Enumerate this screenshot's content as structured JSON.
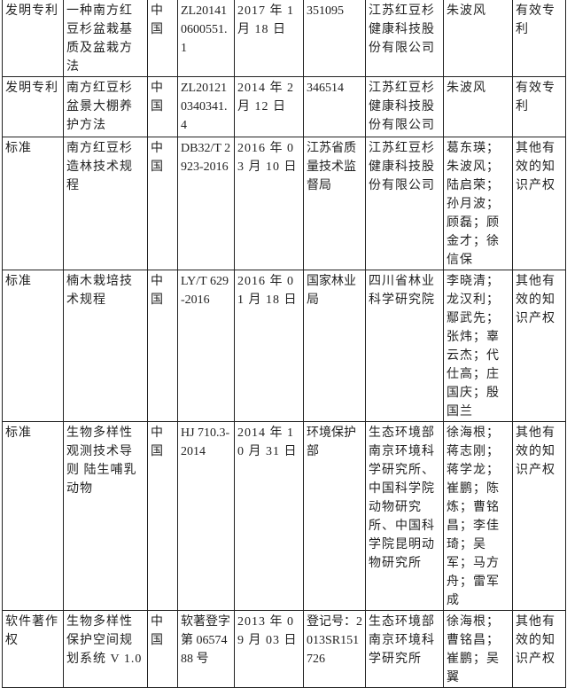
{
  "rows": [
    {
      "type": "发明专利",
      "name": "一种南方红豆杉盆栽基质及盆栽方法",
      "country": "中国",
      "number": "ZL201410600551.1",
      "date": "2017 年 1 月 18 日",
      "issuer": "351095",
      "holder": "江苏红豆杉健康科技股份有限公司",
      "inventors": "朱波风",
      "status": "有效专利"
    },
    {
      "type": "发明专利",
      "name": "南方红豆杉盆景大棚养护方法",
      "country": "中国",
      "number": "ZL201210340341.4",
      "date": "2014 年 2 月 12 日",
      "issuer": "346514",
      "holder": "江苏红豆杉健康科技股份有限公司",
      "inventors": "朱波风",
      "status": "有效专利"
    },
    {
      "type": "标准",
      "name": "南方红豆杉造林技术规程",
      "country": "中国",
      "number": "DB32/T 2923-2016",
      "date": "2016 年 03 月 10 日",
      "issuer": "江苏省质量技术监督局",
      "holder": "江苏红豆杉健康科技股份有限公司",
      "inventors": "葛东瑛；朱波风； 陆启荣；孙月波；顾磊；顾金才；徐信保",
      "status": "其他有效的知识产权"
    },
    {
      "type": "标准",
      "name": "楠木栽培技术规程",
      "country": "中国",
      "number": "LY/T 629-2016",
      "date": "2016 年 01 月 18 日",
      "issuer": "国家林业局",
      "holder": "四川省林业科学研究院",
      "inventors": "李晓清；龙汉利；鄢武先；张炜；辜云杰；代仕高；庄国庆；殷国兰",
      "status": "其他有效的知识产权"
    },
    {
      "type": "标准",
      "name": "生物多样性观测技术导则 陆生哺乳动物",
      "country": "中国",
      "number": "HJ 710.3-2014",
      "date": "2014 年 10 月 31 日",
      "issuer": "环境保护部",
      "holder": "生态环境部南京环境科学研究所、中国科学院动物研究所、中国科学院昆明动物研究所",
      "inventors": "徐海根；蒋志刚；蒋学龙；崔鹏；陈炼；曹铭昌；李佳琦；吴军；马方舟；雷军成",
      "status": "其他有效的知识产权"
    },
    {
      "type": "软件著作权",
      "name": "生物多样性保护空间规划系统 V 1.0",
      "country": "中国",
      "number": "软著登字第 0657488 号",
      "date": "2013 年 09 月 03 日",
      "issuer": "登记号：2013SR151726",
      "holder": "生态环境部南京环境科学研究所",
      "inventors": "徐海根；曹铭昌；崔鹏；吴翼",
      "status": "其他有效的知识产权"
    }
  ]
}
